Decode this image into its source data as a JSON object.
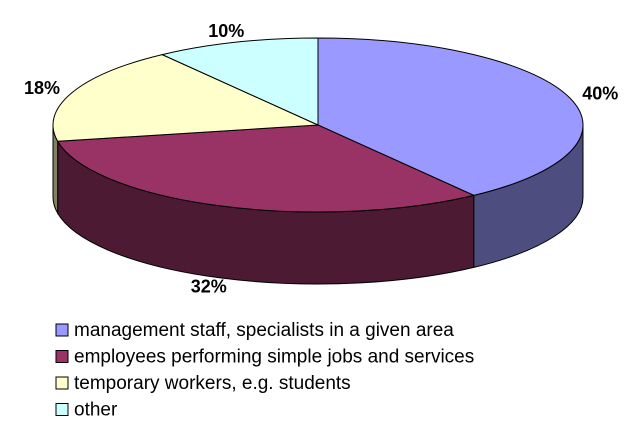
{
  "chart_data": {
    "type": "pie3d",
    "categories": [
      "management staff, specialists in a given area",
      "employees performing simple jobs and services",
      "temporary workers, e.g. students",
      "other"
    ],
    "values": [
      40,
      32,
      18,
      10
    ],
    "value_labels": [
      "40%",
      "32%",
      "18%",
      "10%"
    ],
    "colors": [
      "#9999ff",
      "#993366",
      "#ffffcc",
      "#ccffff"
    ],
    "legend": "bottom"
  }
}
